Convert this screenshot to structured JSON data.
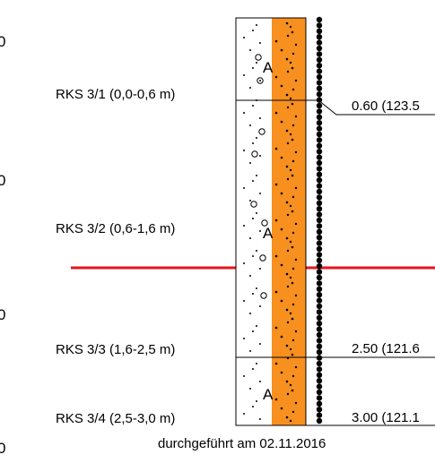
{
  "axis_labels": [
    "0",
    "0",
    "0",
    "0"
  ],
  "samples": [
    {
      "label": "RKS 3/1 (0,0-0,6 m)",
      "code": "A"
    },
    {
      "label": "RKS 3/2 (0,6-1,6 m)",
      "code": "A"
    },
    {
      "label": "RKS 3/3 (1,6-2,5 m)",
      "code": null
    },
    {
      "label": "RKS 3/4 (2,5-3,0 m)",
      "code": "A"
    }
  ],
  "boundaries": [
    {
      "text": "0.60 (123.5",
      "depth": 0.6
    },
    {
      "text": "2.50 (121.6",
      "depth": 2.5
    },
    {
      "text": "3.00 (121.1",
      "depth": 3.0
    }
  ],
  "footer": "durchgeführt am 02.11.2016",
  "colors": {
    "fill": "#f7901e",
    "groundwater": "#e8141b",
    "line": "#000000"
  }
}
